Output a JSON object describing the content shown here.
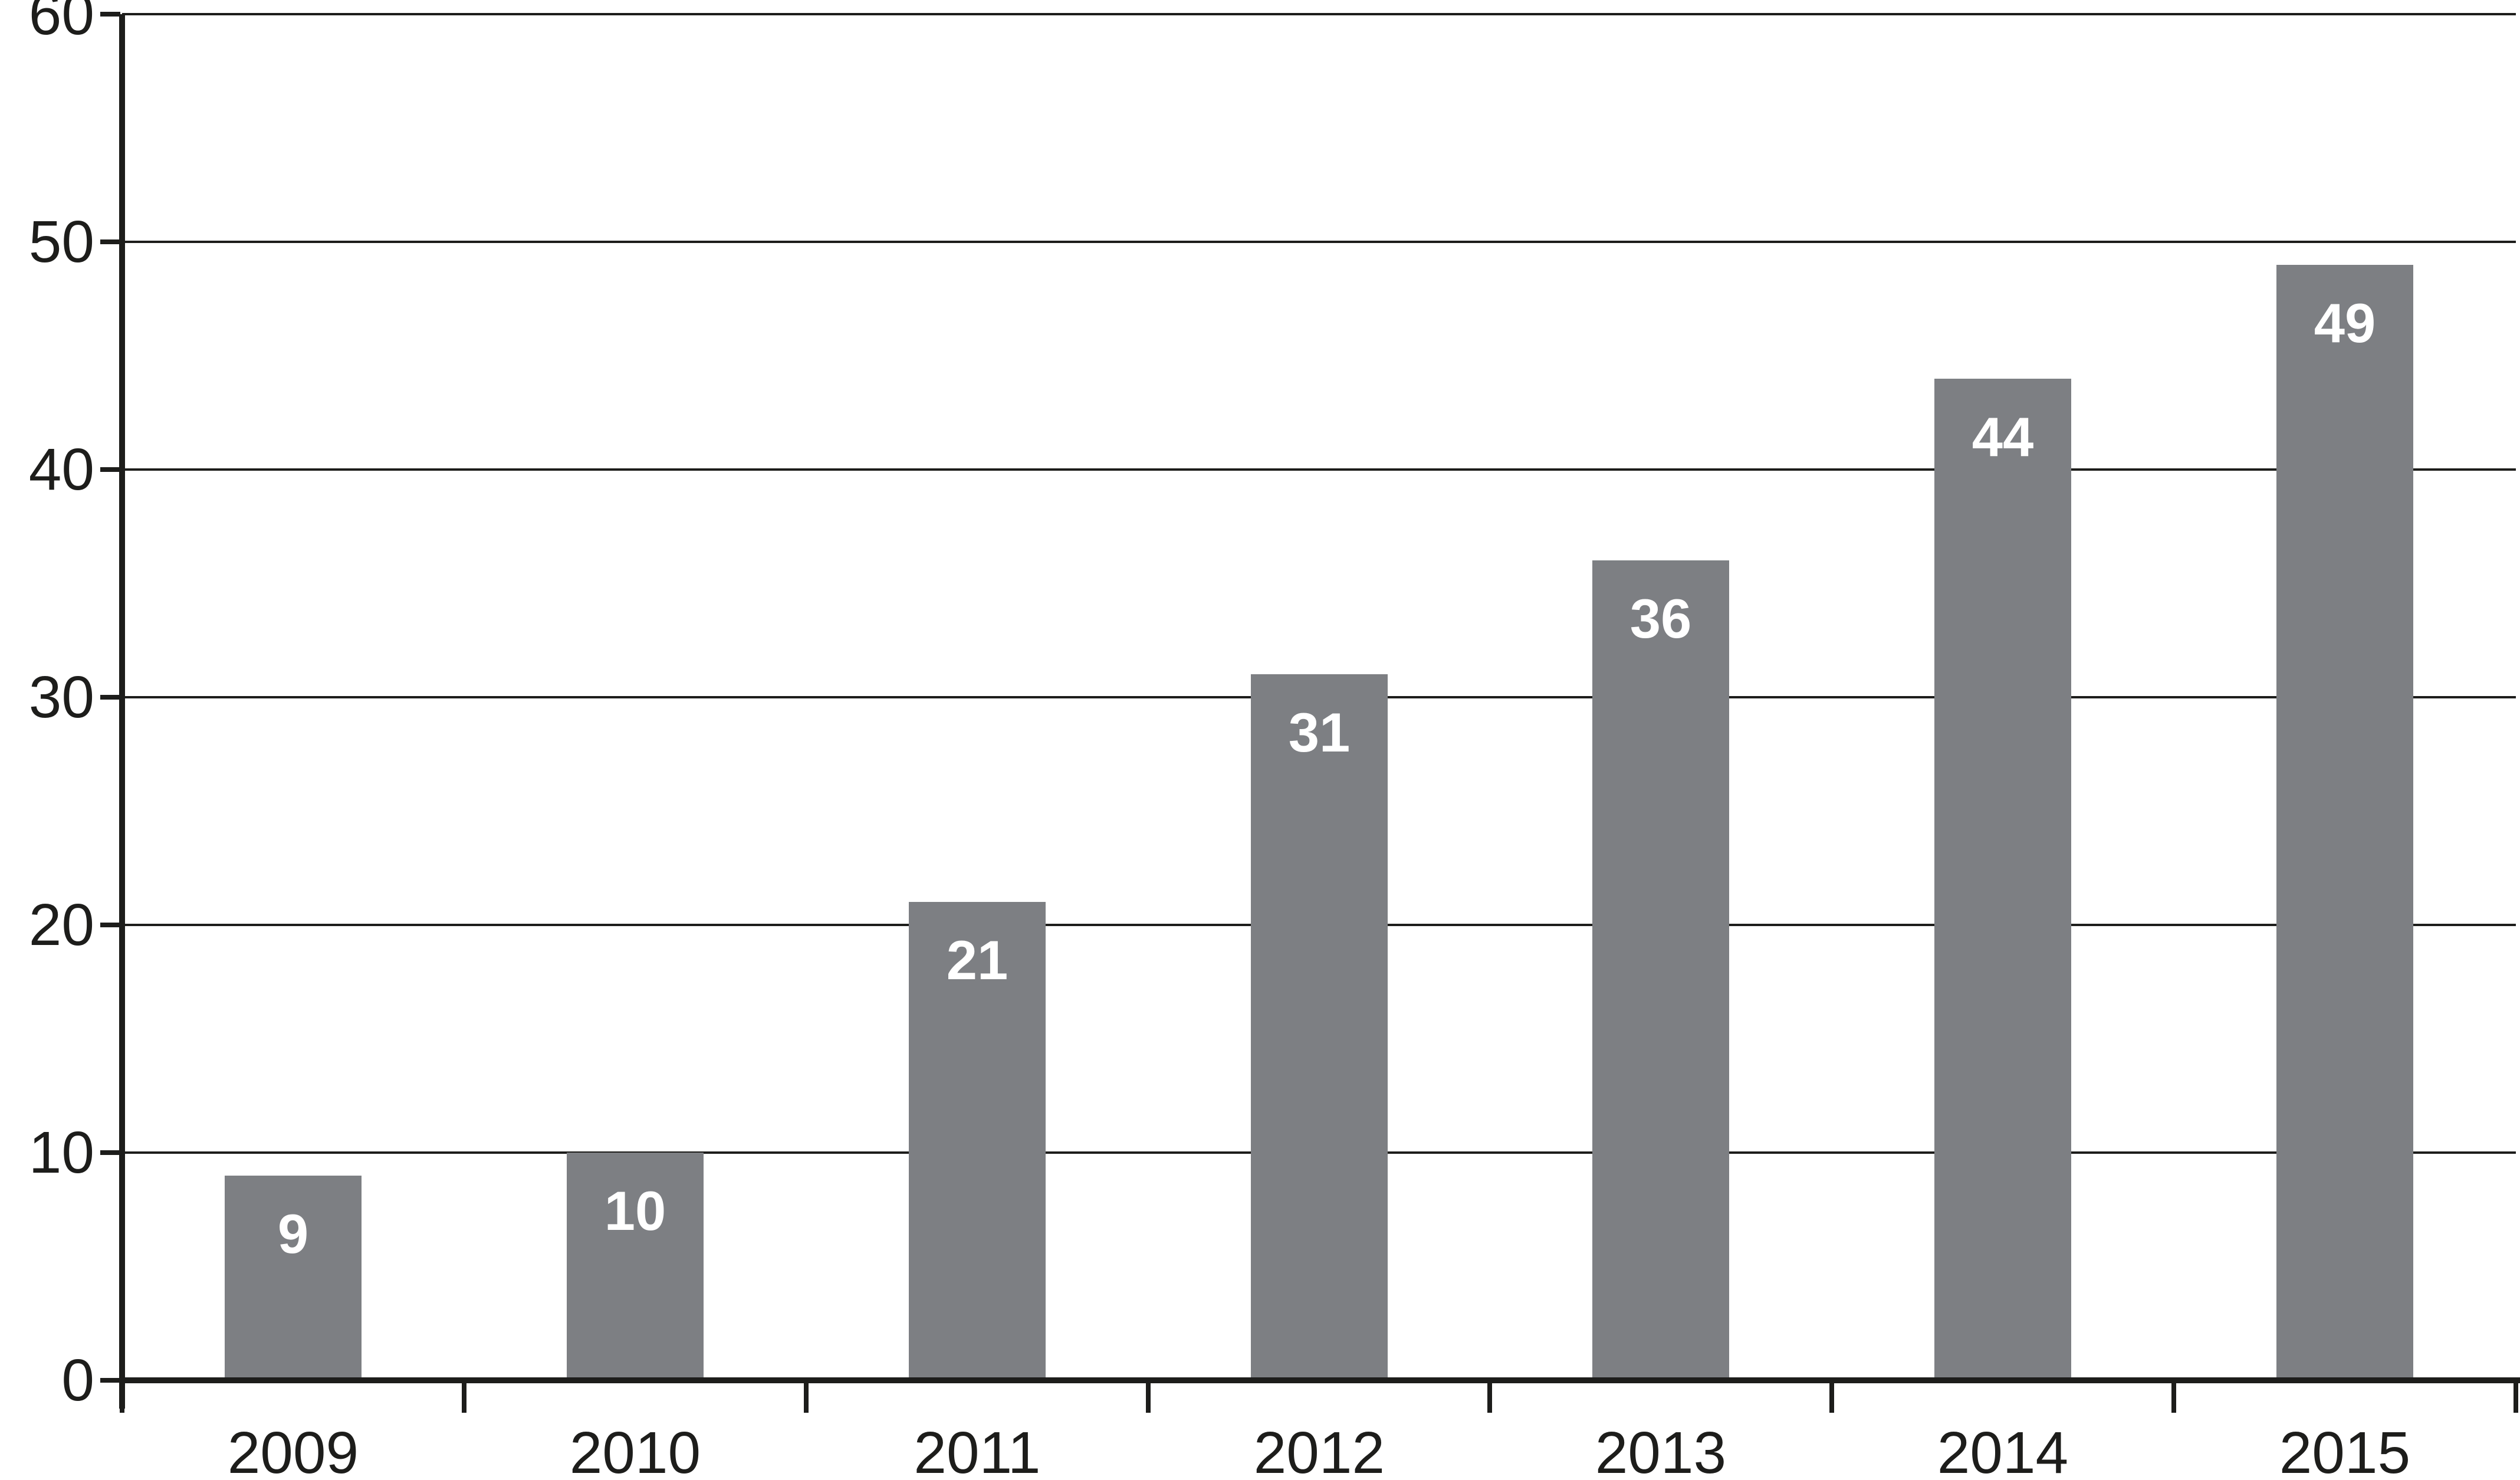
{
  "chart_data": {
    "type": "bar",
    "categories": [
      "2009",
      "2010",
      "2011",
      "2012",
      "2013",
      "2014",
      "2015"
    ],
    "values": [
      9,
      10,
      21,
      31,
      36,
      44,
      49
    ],
    "bar_labels": [
      "9",
      "10",
      "21",
      "31",
      "36",
      "44",
      "49"
    ],
    "title": "",
    "xlabel": "",
    "ylabel": "",
    "ylim": [
      0,
      60
    ],
    "ytick_step": 10,
    "ytick_labels": [
      "0",
      "10",
      "20",
      "30",
      "40",
      "50",
      "60"
    ],
    "grid": true,
    "legend": "none",
    "colors": {
      "bar_fill": "#7d7f83",
      "bar_label_text": "#ffffff",
      "axis_and_text": "#1d1d1b",
      "gridline": "#1d1d1b",
      "background": "#ffffff"
    }
  }
}
